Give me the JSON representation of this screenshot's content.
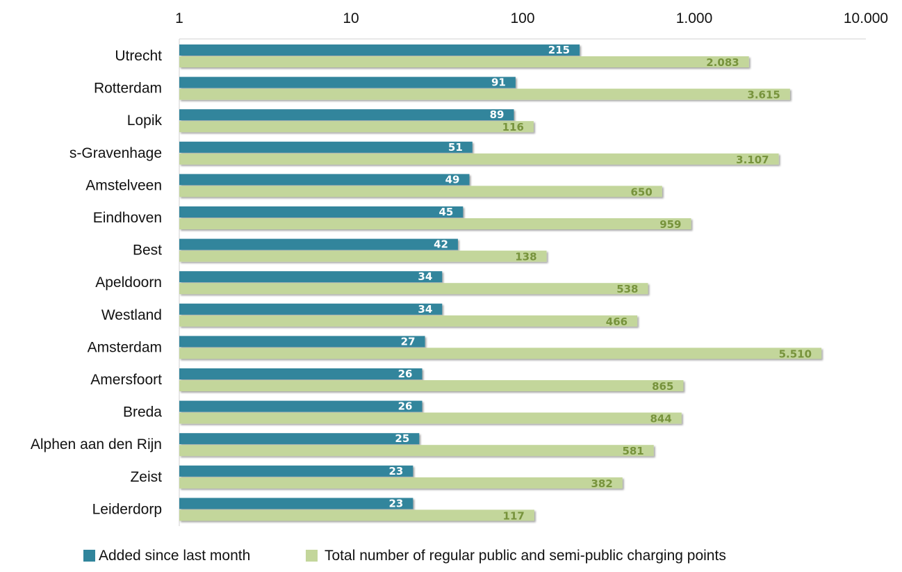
{
  "chart_data": {
    "type": "bar",
    "orientation": "horizontal",
    "x_scale": "log",
    "xlim": [
      1,
      10000
    ],
    "x_ticks": [
      1,
      10,
      100,
      1000,
      10000
    ],
    "x_tick_labels": [
      "1",
      "10",
      "100",
      "1.000",
      "10.000"
    ],
    "grid": false,
    "legend_position": "bottom",
    "categories": [
      "Utrecht",
      "Rotterdam",
      "Lopik",
      "s-Gravenhage",
      "Amstelveen",
      "Eindhoven",
      "Best",
      "Apeldoorn",
      "Westland",
      "Amsterdam",
      "Amersfoort",
      "Breda",
      "Alphen aan den Rijn",
      "Zeist",
      "Leiderdorp"
    ],
    "series": [
      {
        "name": "Added since last month",
        "color": "#31859c",
        "values": [
          215,
          91,
          89,
          51,
          49,
          45,
          42,
          34,
          34,
          27,
          26,
          26,
          25,
          23,
          23
        ],
        "labels": [
          "215",
          "91",
          "89",
          "51",
          "49",
          "45",
          "42",
          "34",
          "34",
          "27",
          "26",
          "26",
          "25",
          "23",
          "23"
        ]
      },
      {
        "name": "Total number of regular public and semi-public charging points",
        "color": "#c3d69b",
        "label_color": "#77933c",
        "values": [
          2083,
          3615,
          116,
          3107,
          650,
          959,
          138,
          538,
          466,
          5510,
          865,
          844,
          581,
          382,
          117
        ],
        "labels": [
          "2.083",
          "3.615",
          "116",
          "3.107",
          "650",
          "959",
          "138",
          "538",
          "466",
          "5.510",
          "865",
          "844",
          "581",
          "382",
          "117"
        ]
      }
    ]
  }
}
